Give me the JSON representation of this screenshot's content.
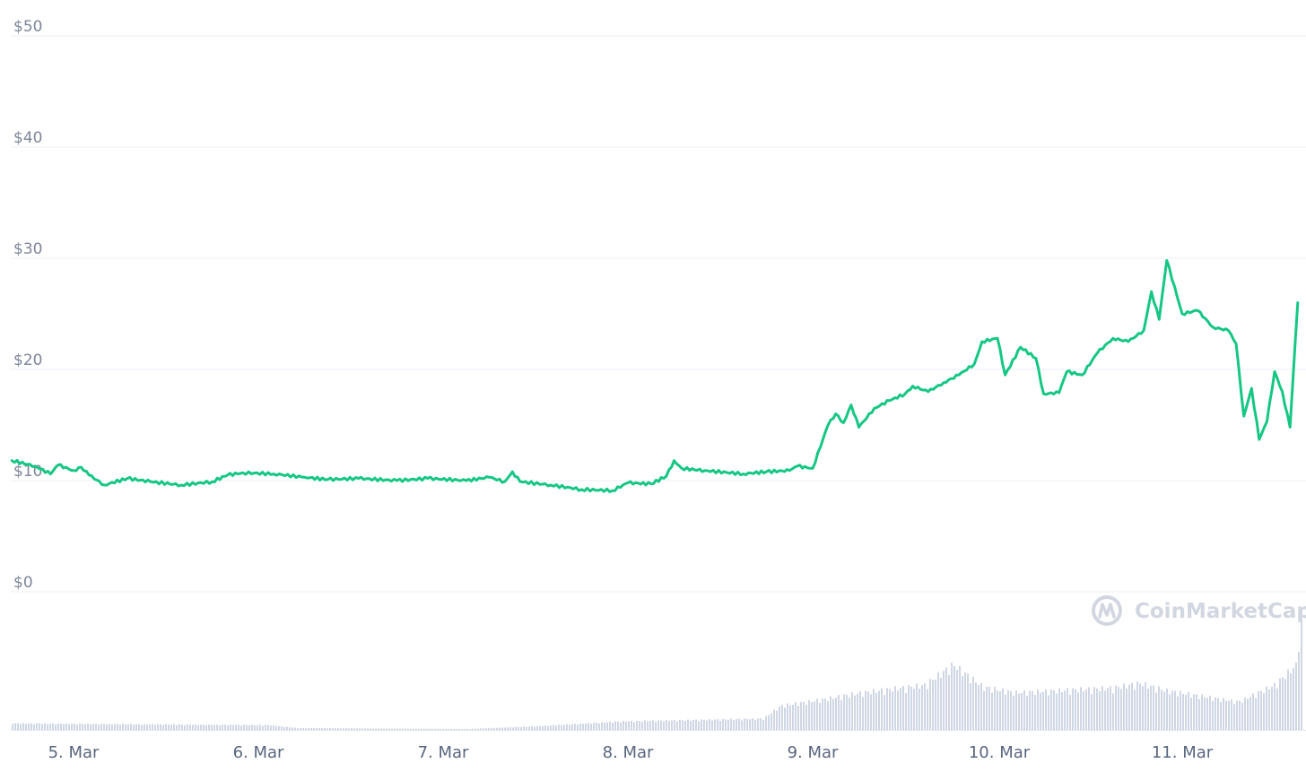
{
  "watermark": {
    "text": "CoinMarketCap",
    "icon": "coinmarketcap-logo-icon"
  },
  "colors": {
    "price_line": "#16c784",
    "volume_bars": "#cfd6e4",
    "grid": "#eceff4",
    "tick_text": "#7d8699",
    "watermark": "#d1d6e0"
  },
  "chart_data": {
    "type": "line",
    "title": "",
    "xlabel": "",
    "ylabel": "",
    "ylim": [
      0,
      50
    ],
    "grid": true,
    "y_ticks": [
      "$50",
      "$40",
      "$30",
      "$20",
      "$10",
      "$0"
    ],
    "y_tick_values": [
      50,
      40,
      30,
      20,
      10,
      0
    ],
    "x_ticks": [
      "5. Mar",
      "6. Mar",
      "7. Mar",
      "8. Mar",
      "9. Mar",
      "10. Mar",
      "11. Mar"
    ],
    "x_tick_values": [
      "2021-03-05",
      "2021-03-06",
      "2021-03-07",
      "2021-03-08",
      "2021-03-09",
      "2021-03-10",
      "2021-03-11"
    ],
    "xlim": [
      "2021-03-04 16:00",
      "2021-03-11 15:00"
    ],
    "series": [
      {
        "type": "line",
        "values": [
          [
            "2021-03-04 16:00",
            11.8
          ],
          [
            "2021-03-04 19:00",
            11.3
          ],
          [
            "2021-03-04 21:00",
            10.6
          ],
          [
            "2021-03-04 22:00",
            11.4
          ],
          [
            "2021-03-05 00:00",
            10.9
          ],
          [
            "2021-03-05 01:00",
            11.2
          ],
          [
            "2021-03-05 02:00",
            10.5
          ],
          [
            "2021-03-05 04:00",
            9.6
          ],
          [
            "2021-03-05 07:00",
            10.2
          ],
          [
            "2021-03-05 10:00",
            9.9
          ],
          [
            "2021-03-05 14:00",
            9.6
          ],
          [
            "2021-03-05 18:00",
            9.9
          ],
          [
            "2021-03-05 20:00",
            10.5
          ],
          [
            "2021-03-05 22:00",
            10.7
          ],
          [
            "2021-03-06 02:00",
            10.6
          ],
          [
            "2021-03-06 06:00",
            10.3
          ],
          [
            "2021-03-06 09:00",
            10.1
          ],
          [
            "2021-03-06 13:00",
            10.2
          ],
          [
            "2021-03-06 18:00",
            10.0
          ],
          [
            "2021-03-06 22:00",
            10.2
          ],
          [
            "2021-03-07 03:00",
            10.0
          ],
          [
            "2021-03-07 06:00",
            10.3
          ],
          [
            "2021-03-07 08:00",
            9.9
          ],
          [
            "2021-03-07 09:00",
            10.8
          ],
          [
            "2021-03-07 10:00",
            9.9
          ],
          [
            "2021-03-07 14:00",
            9.6
          ],
          [
            "2021-03-07 18:00",
            9.2
          ],
          [
            "2021-03-07 22:00",
            9.1
          ],
          [
            "2021-03-08 00:00",
            9.8
          ],
          [
            "2021-03-08 03:00",
            9.7
          ],
          [
            "2021-03-08 05:00",
            10.4
          ],
          [
            "2021-03-08 06:00",
            11.8
          ],
          [
            "2021-03-08 07:00",
            11.1
          ],
          [
            "2021-03-08 10:00",
            10.9
          ],
          [
            "2021-03-08 15:00",
            10.6
          ],
          [
            "2021-03-08 18:00",
            10.8
          ],
          [
            "2021-03-08 21:00",
            10.9
          ],
          [
            "2021-03-08 22:00",
            11.3
          ],
          [
            "2021-03-09 00:00",
            11.1
          ],
          [
            "2021-03-09 02:00",
            15.0
          ],
          [
            "2021-03-09 03:00",
            16.0
          ],
          [
            "2021-03-09 04:00",
            15.2
          ],
          [
            "2021-03-09 05:00",
            16.8
          ],
          [
            "2021-03-09 06:00",
            14.8
          ],
          [
            "2021-03-09 08:00",
            16.5
          ],
          [
            "2021-03-09 10:00",
            17.2
          ],
          [
            "2021-03-09 12:00",
            17.8
          ],
          [
            "2021-03-09 13:00",
            18.5
          ],
          [
            "2021-03-09 15:00",
            18.0
          ],
          [
            "2021-03-09 17:00",
            18.8
          ],
          [
            "2021-03-09 19:00",
            19.5
          ],
          [
            "2021-03-09 21:00",
            20.5
          ],
          [
            "2021-03-09 22:00",
            22.5
          ],
          [
            "2021-03-10 00:00",
            22.8
          ],
          [
            "2021-03-10 01:00",
            19.5
          ],
          [
            "2021-03-10 03:00",
            22.0
          ],
          [
            "2021-03-10 05:00",
            21.0
          ],
          [
            "2021-03-10 06:00",
            17.8
          ],
          [
            "2021-03-10 08:00",
            17.9
          ],
          [
            "2021-03-10 09:00",
            19.8
          ],
          [
            "2021-03-10 11:00",
            19.5
          ],
          [
            "2021-03-10 13:00",
            21.5
          ],
          [
            "2021-03-10 15:00",
            22.8
          ],
          [
            "2021-03-10 17:00",
            22.5
          ],
          [
            "2021-03-10 19:00",
            23.5
          ],
          [
            "2021-03-10 20:00",
            27.0
          ],
          [
            "2021-03-10 21:00",
            24.5
          ],
          [
            "2021-03-10 22:00",
            29.8
          ],
          [
            "2021-03-11 00:00",
            25.0
          ],
          [
            "2021-03-11 02:00",
            25.3
          ],
          [
            "2021-03-11 04:00",
            23.8
          ],
          [
            "2021-03-11 06:00",
            23.5
          ],
          [
            "2021-03-11 07:00",
            22.3
          ],
          [
            "2021-03-11 08:00",
            15.8
          ],
          [
            "2021-03-11 09:00",
            18.3
          ],
          [
            "2021-03-11 10:00",
            13.7
          ],
          [
            "2021-03-11 11:00",
            15.3
          ],
          [
            "2021-03-11 12:00",
            19.8
          ],
          [
            "2021-03-11 13:00",
            18.0
          ],
          [
            "2021-03-11 14:00",
            14.8
          ],
          [
            "2021-03-11 15:00",
            26.0
          ]
        ]
      }
    ]
  }
}
